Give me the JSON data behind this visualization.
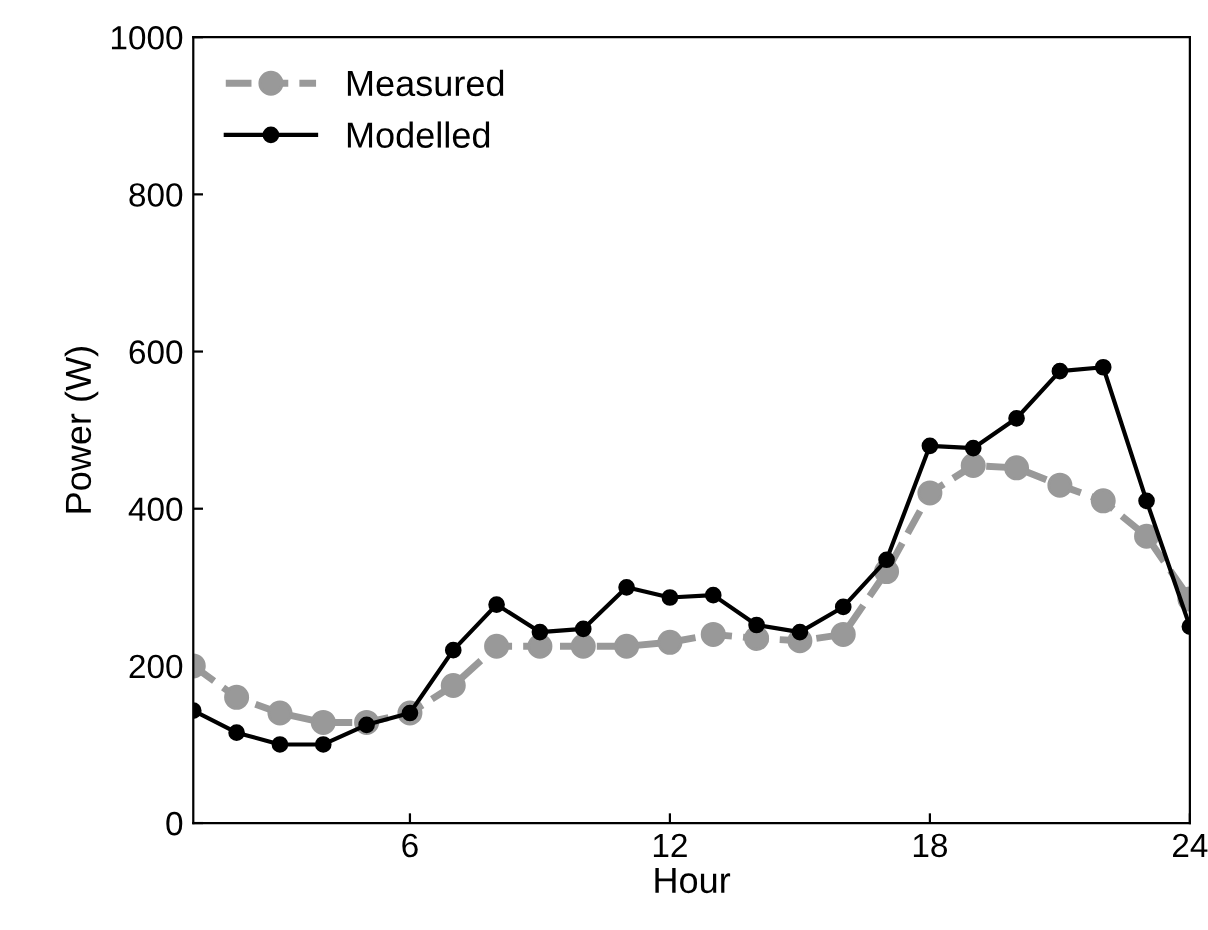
{
  "chart_data": {
    "type": "line",
    "xlabel": "Hour",
    "ylabel": "Power (W)",
    "x": [
      1,
      2,
      3,
      4,
      5,
      6,
      7,
      8,
      9,
      10,
      11,
      12,
      13,
      14,
      15,
      16,
      17,
      18,
      19,
      20,
      21,
      22,
      23,
      24
    ],
    "xlim": [
      1,
      24
    ],
    "xticks": [
      6,
      12,
      18,
      24
    ],
    "ylim": [
      0,
      1000
    ],
    "yticks": [
      0,
      200,
      400,
      600,
      800,
      1000
    ],
    "grid": false,
    "legend": "top left",
    "marker": "circle",
    "series": [
      {
        "name": "Measured",
        "color": "#999999",
        "line_style": "dashed",
        "values": [
          200,
          160,
          140,
          128,
          128,
          140,
          175,
          225,
          225,
          225,
          225,
          230,
          240,
          235,
          232,
          240,
          320,
          420,
          455,
          452,
          430,
          410,
          365,
          285
        ]
      },
      {
        "name": "Modelled",
        "color": "#000000",
        "line_style": "solid",
        "values": [
          143,
          115,
          100,
          100,
          125,
          140,
          220,
          278,
          243,
          247,
          300,
          287,
          290,
          252,
          243,
          275,
          335,
          480,
          477,
          515,
          575,
          580,
          410,
          250
        ]
      }
    ]
  }
}
